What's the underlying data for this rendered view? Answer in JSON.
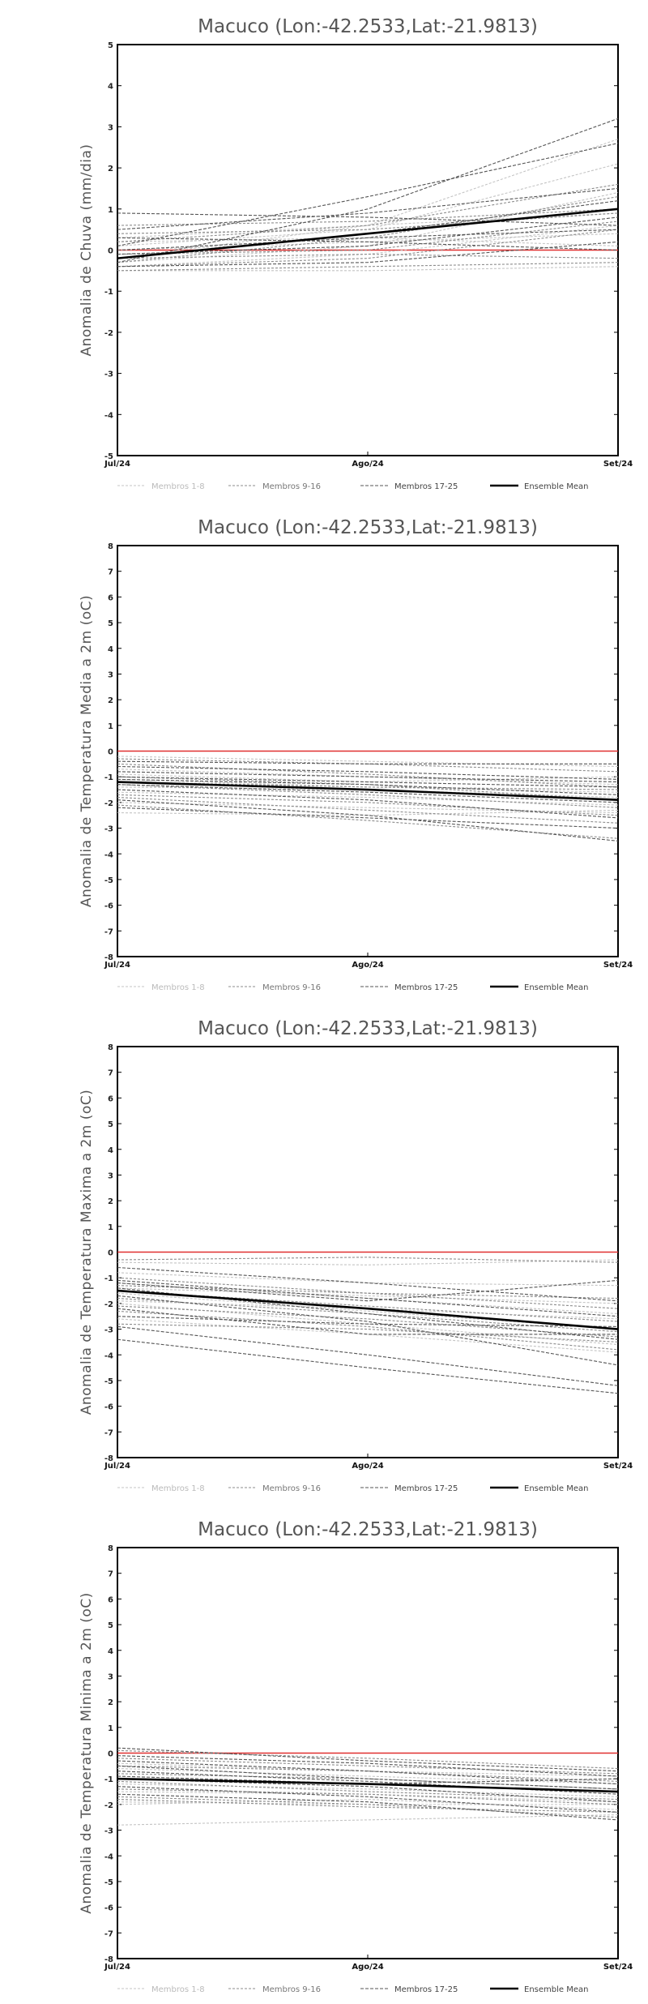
{
  "chart_data": [
    {
      "type": "line",
      "title": "Macuco (Lon:-42.2533,Lat:-21.9813)",
      "ylabel": "Anomalia de Chuva (mm/dia)",
      "xlabel": "",
      "categories": [
        "Jul/24",
        "Ago/24",
        "Set/24"
      ],
      "ylim": [
        -5,
        5
      ],
      "yticks": [
        -5,
        -4,
        -3,
        -2,
        -1,
        0,
        1,
        2,
        3,
        4,
        5
      ],
      "zero_line_color": "#e03030",
      "legend": [
        "Membros 1-8",
        "Membros 9-16",
        "Membros 17-25",
        "Ensemble Mean"
      ],
      "series": [
        {
          "group": "m1",
          "values": [
            -0.2,
            0.6,
            2.7
          ]
        },
        {
          "group": "m1",
          "values": [
            0.1,
            0.5,
            2.1
          ]
        },
        {
          "group": "m1",
          "values": [
            -0.3,
            0.1,
            1.4
          ]
        },
        {
          "group": "m1",
          "values": [
            0.3,
            0.6,
            0.9
          ]
        },
        {
          "group": "m1",
          "values": [
            -0.4,
            -0.1,
            0.6
          ]
        },
        {
          "group": "m1",
          "values": [
            0.0,
            0.2,
            0.4
          ]
        },
        {
          "group": "m1",
          "values": [
            -0.5,
            -0.5,
            -0.4
          ]
        },
        {
          "group": "m1",
          "values": [
            0.2,
            0.3,
            0.1
          ]
        },
        {
          "group": "m2",
          "values": [
            -0.3,
            0.3,
            1.3
          ]
        },
        {
          "group": "m2",
          "values": [
            0.4,
            0.5,
            0.9
          ]
        },
        {
          "group": "m2",
          "values": [
            -0.1,
            0.0,
            0.7
          ]
        },
        {
          "group": "m2",
          "values": [
            -0.4,
            -0.2,
            0.5
          ]
        },
        {
          "group": "m2",
          "values": [
            0.2,
            0.6,
            1.6
          ]
        },
        {
          "group": "m2",
          "values": [
            -0.2,
            -0.1,
            -0.2
          ]
        },
        {
          "group": "m2",
          "values": [
            0.6,
            0.7,
            1.0
          ]
        },
        {
          "group": "m2",
          "values": [
            -0.5,
            -0.4,
            -0.3
          ]
        },
        {
          "group": "m3",
          "values": [
            -0.3,
            1.0,
            3.2
          ]
        },
        {
          "group": "m3",
          "values": [
            0.9,
            0.8,
            0.6
          ]
        },
        {
          "group": "m3",
          "values": [
            0.1,
            1.3,
            2.6
          ]
        },
        {
          "group": "m3",
          "values": [
            -0.2,
            0.4,
            1.2
          ]
        },
        {
          "group": "m3",
          "values": [
            0.0,
            0.3,
            0.5
          ]
        },
        {
          "group": "m3",
          "values": [
            -0.4,
            -0.3,
            0.2
          ]
        },
        {
          "group": "m3",
          "values": [
            0.5,
            0.9,
            1.5
          ]
        },
        {
          "group": "m3",
          "values": [
            -0.1,
            0.1,
            0.8
          ]
        },
        {
          "group": "m3",
          "values": [
            0.3,
            0.2,
            0.0
          ]
        },
        {
          "group": "mean",
          "values": [
            -0.2,
            0.4,
            1.0
          ]
        }
      ]
    },
    {
      "type": "line",
      "title": "Macuco (Lon:-42.2533,Lat:-21.9813)",
      "ylabel": "Anomalia de Temperatura Media a 2m (oC)",
      "xlabel": "",
      "categories": [
        "Jul/24",
        "Ago/24",
        "Set/24"
      ],
      "ylim": [
        -8,
        8
      ],
      "yticks": [
        -8,
        -7,
        -6,
        -5,
        -4,
        -3,
        -2,
        -1,
        0,
        1,
        2,
        3,
        4,
        5,
        6,
        7,
        8
      ],
      "zero_line_color": "#e03030",
      "legend": [
        "Membros 1-8",
        "Membros 9-16",
        "Membros 17-25",
        "Ensemble Mean"
      ],
      "series": [
        {
          "group": "m1",
          "values": [
            -0.2,
            -0.4,
            -0.6
          ]
        },
        {
          "group": "m1",
          "values": [
            -0.7,
            -1.0,
            -1.3
          ]
        },
        {
          "group": "m1",
          "values": [
            -1.1,
            -1.4,
            -1.6
          ]
        },
        {
          "group": "m1",
          "values": [
            -1.6,
            -1.8,
            -2.1
          ]
        },
        {
          "group": "m1",
          "values": [
            -2.0,
            -2.2,
            -2.4
          ]
        },
        {
          "group": "m1",
          "values": [
            -2.4,
            -2.5,
            -2.3
          ]
        },
        {
          "group": "m1",
          "values": [
            -0.9,
            -1.2,
            -1.0
          ]
        },
        {
          "group": "m1",
          "values": [
            -1.4,
            -1.5,
            -1.8
          ]
        },
        {
          "group": "m2",
          "values": [
            -0.5,
            -0.9,
            -1.4
          ]
        },
        {
          "group": "m2",
          "values": [
            -1.0,
            -1.3,
            -1.9
          ]
        },
        {
          "group": "m2",
          "values": [
            -1.3,
            -1.7,
            -2.2
          ]
        },
        {
          "group": "m2",
          "values": [
            -1.8,
            -2.3,
            -2.8
          ]
        },
        {
          "group": "m2",
          "values": [
            -2.1,
            -2.7,
            -3.4
          ]
        },
        {
          "group": "m2",
          "values": [
            -0.3,
            -0.5,
            -0.8
          ]
        },
        {
          "group": "m2",
          "values": [
            -1.2,
            -1.4,
            -1.5
          ]
        },
        {
          "group": "m2",
          "values": [
            -1.7,
            -2.0,
            -2.5
          ]
        },
        {
          "group": "m3",
          "values": [
            -0.4,
            -0.5,
            -0.5
          ]
        },
        {
          "group": "m3",
          "values": [
            -0.8,
            -1.0,
            -1.2
          ]
        },
        {
          "group": "m3",
          "values": [
            -1.0,
            -1.2,
            -1.4
          ]
        },
        {
          "group": "m3",
          "values": [
            -1.3,
            -1.6,
            -2.0
          ]
        },
        {
          "group": "m3",
          "values": [
            -1.5,
            -1.9,
            -2.6
          ]
        },
        {
          "group": "m3",
          "values": [
            -1.9,
            -2.5,
            -3.5
          ]
        },
        {
          "group": "m3",
          "values": [
            -2.2,
            -2.6,
            -3.0
          ]
        },
        {
          "group": "m3",
          "values": [
            -0.6,
            -0.8,
            -1.1
          ]
        },
        {
          "group": "m3",
          "values": [
            -1.1,
            -1.3,
            -1.7
          ]
        },
        {
          "group": "mean",
          "values": [
            -1.2,
            -1.5,
            -1.9
          ]
        }
      ]
    },
    {
      "type": "line",
      "title": "Macuco (Lon:-42.2533,Lat:-21.9813)",
      "ylabel": "Anomalia de Temperatura Maxima a 2m (oC)",
      "xlabel": "",
      "categories": [
        "Jul/24",
        "Ago/24",
        "Set/24"
      ],
      "ylim": [
        -8,
        8
      ],
      "yticks": [
        -8,
        -7,
        -6,
        -5,
        -4,
        -3,
        -2,
        -1,
        0,
        1,
        2,
        3,
        4,
        5,
        6,
        7,
        8
      ],
      "zero_line_color": "#e03030",
      "legend": [
        "Membros 1-8",
        "Membros 9-16",
        "Membros 17-25",
        "Ensemble Mean"
      ],
      "series": [
        {
          "group": "m1",
          "values": [
            -0.8,
            -1.2,
            -1.3
          ]
        },
        {
          "group": "m1",
          "values": [
            -1.2,
            -1.8,
            -2.4
          ]
        },
        {
          "group": "m1",
          "values": [
            -1.6,
            -2.3,
            -3.0
          ]
        },
        {
          "group": "m1",
          "values": [
            -2.0,
            -2.8,
            -3.6
          ]
        },
        {
          "group": "m1",
          "values": [
            -2.6,
            -3.2,
            -3.9
          ]
        },
        {
          "group": "m1",
          "values": [
            -0.4,
            -0.5,
            -0.3
          ]
        },
        {
          "group": "m1",
          "values": [
            -1.4,
            -1.7,
            -2.0
          ]
        },
        {
          "group": "m1",
          "values": [
            -1.9,
            -2.2,
            -2.6
          ]
        },
        {
          "group": "m2",
          "values": [
            -1.0,
            -1.6,
            -2.2
          ]
        },
        {
          "group": "m2",
          "values": [
            -1.5,
            -2.1,
            -2.7
          ]
        },
        {
          "group": "m2",
          "values": [
            -2.1,
            -2.6,
            -3.3
          ]
        },
        {
          "group": "m2",
          "values": [
            -2.8,
            -3.0,
            -3.5
          ]
        },
        {
          "group": "m2",
          "values": [
            -1.3,
            -1.6,
            -1.8
          ]
        },
        {
          "group": "m2",
          "values": [
            -1.8,
            -2.4,
            -3.1
          ]
        },
        {
          "group": "m2",
          "values": [
            -2.3,
            -2.9,
            -3.8
          ]
        },
        {
          "group": "m2",
          "values": [
            -0.3,
            -0.2,
            -0.4
          ]
        },
        {
          "group": "m3",
          "values": [
            -0.6,
            -1.2,
            -1.9
          ]
        },
        {
          "group": "m3",
          "values": [
            -1.1,
            -1.8,
            -2.5
          ]
        },
        {
          "group": "m3",
          "values": [
            -1.4,
            -2.4,
            -3.4
          ]
        },
        {
          "group": "m3",
          "values": [
            -1.7,
            -2.7,
            -4.4
          ]
        },
        {
          "group": "m3",
          "values": [
            -2.2,
            -3.2,
            -3.2
          ]
        },
        {
          "group": "m3",
          "values": [
            -2.9,
            -4.0,
            -5.2
          ]
        },
        {
          "group": "m3",
          "values": [
            -3.4,
            -4.5,
            -5.5
          ]
        },
        {
          "group": "m3",
          "values": [
            -1.2,
            -1.9,
            -1.1
          ]
        },
        {
          "group": "m3",
          "values": [
            -2.5,
            -2.8,
            -2.9
          ]
        },
        {
          "group": "mean",
          "values": [
            -1.5,
            -2.2,
            -3.0
          ]
        }
      ]
    },
    {
      "type": "line",
      "title": "Macuco (Lon:-42.2533,Lat:-21.9813)",
      "ylabel": "Anomalia de Temperatura Minima a 2m (oC)",
      "xlabel": "",
      "categories": [
        "Jul/24",
        "Ago/24",
        "Set/24"
      ],
      "ylim": [
        -8,
        8
      ],
      "yticks": [
        -8,
        -7,
        -6,
        -5,
        -4,
        -3,
        -2,
        -1,
        0,
        1,
        2,
        3,
        4,
        5,
        6,
        7,
        8
      ],
      "zero_line_color": "#e03030",
      "legend": [
        "Membros 1-8",
        "Membros 9-16",
        "Membros 17-25",
        "Ensemble Mean"
      ],
      "series": [
        {
          "group": "m1",
          "values": [
            -0.4,
            -0.7,
            -0.9
          ]
        },
        {
          "group": "m1",
          "values": [
            -1.0,
            -1.2,
            -1.5
          ]
        },
        {
          "group": "m1",
          "values": [
            -1.5,
            -1.6,
            -1.9
          ]
        },
        {
          "group": "m1",
          "values": [
            -2.0,
            -1.8,
            -2.2
          ]
        },
        {
          "group": "m1",
          "values": [
            -2.8,
            -2.6,
            -2.4
          ]
        },
        {
          "group": "m1",
          "values": [
            -1.9,
            -2.0,
            -2.0
          ]
        },
        {
          "group": "m1",
          "values": [
            -0.6,
            -0.9,
            -1.2
          ]
        },
        {
          "group": "m1",
          "values": [
            -1.2,
            -1.4,
            -1.7
          ]
        },
        {
          "group": "m2",
          "values": [
            -0.2,
            -0.5,
            -0.8
          ]
        },
        {
          "group": "m2",
          "values": [
            -0.8,
            -1.0,
            -1.4
          ]
        },
        {
          "group": "m2",
          "values": [
            -1.4,
            -1.6,
            -2.0
          ]
        },
        {
          "group": "m2",
          "values": [
            -1.7,
            -2.0,
            -2.5
          ]
        },
        {
          "group": "m2",
          "values": [
            -0.5,
            -0.7,
            -1.1
          ]
        },
        {
          "group": "m2",
          "values": [
            -1.1,
            -1.5,
            -1.8
          ]
        },
        {
          "group": "m2",
          "values": [
            -1.8,
            -2.1,
            -2.3
          ]
        },
        {
          "group": "m2",
          "values": [
            0.1,
            -0.2,
            -0.6
          ]
        },
        {
          "group": "m3",
          "values": [
            0.2,
            -0.3,
            -0.7
          ]
        },
        {
          "group": "m3",
          "values": [
            -0.3,
            -0.7,
            -1.2
          ]
        },
        {
          "group": "m3",
          "values": [
            -0.7,
            -1.1,
            -1.6
          ]
        },
        {
          "group": "m3",
          "values": [
            -1.0,
            -1.3,
            -1.9
          ]
        },
        {
          "group": "m3",
          "values": [
            -1.3,
            -1.7,
            -2.3
          ]
        },
        {
          "group": "m3",
          "values": [
            -0.5,
            -1.0,
            -1.4
          ]
        },
        {
          "group": "m3",
          "values": [
            -0.9,
            -1.2,
            -1.0
          ]
        },
        {
          "group": "m3",
          "values": [
            -1.6,
            -1.9,
            -2.6
          ]
        },
        {
          "group": "m3",
          "values": [
            -0.1,
            -0.4,
            -0.9
          ]
        },
        {
          "group": "mean",
          "values": [
            -1.0,
            -1.2,
            -1.5
          ]
        }
      ]
    }
  ]
}
